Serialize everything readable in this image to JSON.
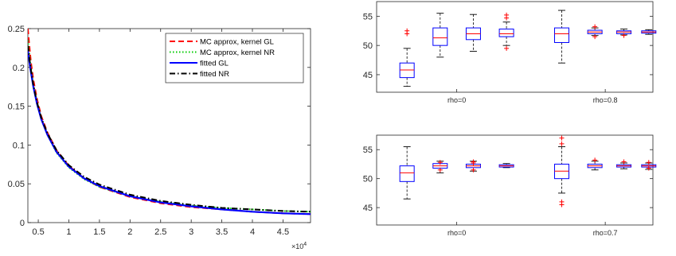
{
  "chart_data": [
    {
      "type": "line",
      "xlabel": "",
      "ylabel": "",
      "x_multiplier_label": "×10",
      "x_multiplier_exp": "4",
      "xlim": [
        0.33,
        4.95
      ],
      "ylim": [
        0,
        0.25
      ],
      "xticks": [
        0.5,
        1,
        1.5,
        2,
        2.5,
        3,
        3.5,
        4,
        4.5
      ],
      "xtick_labels": [
        "0.5",
        "1",
        "1.5",
        "2",
        "2.5",
        "3",
        "3.5",
        "4",
        "4.5"
      ],
      "yticks": [
        0,
        0.05,
        0.1,
        0.15,
        0.2,
        0.25
      ],
      "ytick_labels": [
        "0",
        "0.05",
        "0.1",
        "0.15",
        "0.2",
        "0.25"
      ],
      "legend_position": "top-right",
      "series": [
        {
          "name": "MC approx, kernel GL",
          "color": "#ff0000",
          "style": "dashed",
          "x": [
            0.33,
            0.35,
            0.38,
            0.42,
            0.48,
            0.55,
            0.65,
            0.8,
            1.0,
            1.25,
            1.5,
            2.0,
            2.5,
            3.0,
            3.5,
            4.0,
            4.5,
            4.95
          ],
          "y": [
            0.25,
            0.232,
            0.207,
            0.184,
            0.159,
            0.137,
            0.116,
            0.093,
            0.073,
            0.057,
            0.046,
            0.033,
            0.025,
            0.02,
            0.017,
            0.014,
            0.012,
            0.011
          ]
        },
        {
          "name": "MC approx, kernel NR",
          "color": "#00cc00",
          "style": "dotted",
          "x": [
            0.33,
            0.35,
            0.38,
            0.42,
            0.48,
            0.55,
            0.65,
            0.8,
            1.0,
            1.25,
            1.5,
            2.0,
            2.5,
            3.0,
            3.5,
            4.0,
            4.5,
            4.95
          ],
          "y": [
            0.235,
            0.22,
            0.2,
            0.178,
            0.155,
            0.134,
            0.113,
            0.09,
            0.071,
            0.056,
            0.046,
            0.034,
            0.027,
            0.022,
            0.019,
            0.017,
            0.015,
            0.014
          ]
        },
        {
          "name": "fitted GL",
          "color": "#0000ff",
          "style": "solid",
          "x": [
            0.33,
            0.35,
            0.38,
            0.42,
            0.48,
            0.55,
            0.65,
            0.8,
            1.0,
            1.25,
            1.5,
            2.0,
            2.5,
            3.0,
            3.5,
            4.0,
            4.5,
            4.95
          ],
          "y": [
            0.222,
            0.21,
            0.194,
            0.175,
            0.153,
            0.133,
            0.113,
            0.091,
            0.072,
            0.057,
            0.047,
            0.034,
            0.026,
            0.021,
            0.017,
            0.014,
            0.012,
            0.011
          ]
        },
        {
          "name": "fitted NR",
          "color": "#000000",
          "style": "dashdot",
          "x": [
            0.33,
            0.35,
            0.38,
            0.42,
            0.48,
            0.55,
            0.65,
            0.8,
            1.0,
            1.25,
            1.5,
            2.0,
            2.5,
            3.0,
            3.5,
            4.0,
            4.5,
            4.95
          ],
          "y": [
            0.228,
            0.215,
            0.197,
            0.177,
            0.155,
            0.135,
            0.115,
            0.093,
            0.074,
            0.059,
            0.049,
            0.036,
            0.028,
            0.023,
            0.019,
            0.017,
            0.015,
            0.014
          ]
        }
      ]
    },
    {
      "type": "box",
      "ylim": [
        42,
        57.5
      ],
      "yticks": [
        45,
        50,
        55
      ],
      "ytick_labels": [
        "45",
        "50",
        "55"
      ],
      "group_labels": [
        "rho=0",
        "rho=0.8"
      ],
      "boxes": [
        {
          "group": 0,
          "q1": 44.5,
          "median": 45.8,
          "q3": 47.0,
          "whisker_low": 43.0,
          "whisker_high": 49.5,
          "outliers": [
            52.0,
            52.5
          ]
        },
        {
          "group": 0,
          "q1": 50.0,
          "median": 51.3,
          "q3": 53.0,
          "whisker_low": 48.0,
          "whisker_high": 55.5,
          "outliers": []
        },
        {
          "group": 0,
          "q1": 51.0,
          "median": 52.0,
          "q3": 53.0,
          "whisker_low": 49.0,
          "whisker_high": 55.3,
          "outliers": []
        },
        {
          "group": 0,
          "q1": 51.5,
          "median": 52.0,
          "q3": 52.8,
          "whisker_low": 50.0,
          "whisker_high": 54.0,
          "outliers": [
            49.5,
            54.7,
            55.2
          ]
        },
        {
          "group": 1,
          "q1": 50.5,
          "median": 52.0,
          "q3": 53.0,
          "whisker_low": 47.0,
          "whisker_high": 56.0,
          "outliers": []
        },
        {
          "group": 1,
          "q1": 52.0,
          "median": 52.3,
          "q3": 52.6,
          "whisker_low": 51.7,
          "whisker_high": 53.0,
          "outliers": [
            53.2,
            51.5
          ]
        },
        {
          "group": 1,
          "q1": 52.0,
          "median": 52.3,
          "q3": 52.5,
          "whisker_low": 51.8,
          "whisker_high": 52.8,
          "outliers": [
            51.7
          ]
        },
        {
          "group": 1,
          "q1": 52.1,
          "median": 52.3,
          "q3": 52.5,
          "whisker_low": 51.9,
          "whisker_high": 52.7,
          "outliers": []
        }
      ]
    },
    {
      "type": "box",
      "ylim": [
        42,
        57.5
      ],
      "yticks": [
        45,
        50,
        55
      ],
      "ytick_labels": [
        "45",
        "50",
        "55"
      ],
      "group_labels": [
        "rho=0",
        "rho=0.7"
      ],
      "boxes": [
        {
          "group": 0,
          "q1": 49.5,
          "median": 51.0,
          "q3": 52.2,
          "whisker_low": 46.5,
          "whisker_high": 55.5,
          "outliers": []
        },
        {
          "group": 0,
          "q1": 51.8,
          "median": 52.2,
          "q3": 52.6,
          "whisker_low": 51.0,
          "whisker_high": 53.0,
          "outliers": [
            51.5,
            52.8
          ]
        },
        {
          "group": 0,
          "q1": 51.9,
          "median": 52.2,
          "q3": 52.5,
          "whisker_low": 51.3,
          "whisker_high": 53.0,
          "outliers": [
            51.5,
            52.7,
            52.9
          ]
        },
        {
          "group": 0,
          "q1": 52.0,
          "median": 52.2,
          "q3": 52.4,
          "whisker_low": 51.9,
          "whisker_high": 52.6,
          "outliers": []
        },
        {
          "group": 1,
          "q1": 50.0,
          "median": 51.3,
          "q3": 52.5,
          "whisker_low": 47.5,
          "whisker_high": 55.5,
          "outliers": [
            45.5,
            46.0,
            56.0,
            57.0
          ]
        },
        {
          "group": 1,
          "q1": 51.9,
          "median": 52.2,
          "q3": 52.5,
          "whisker_low": 51.5,
          "whisker_high": 53.0,
          "outliers": [
            53.2
          ]
        },
        {
          "group": 1,
          "q1": 52.0,
          "median": 52.2,
          "q3": 52.4,
          "whisker_low": 51.7,
          "whisker_high": 52.7,
          "outliers": [
            52.9
          ]
        },
        {
          "group": 1,
          "q1": 52.0,
          "median": 52.2,
          "q3": 52.4,
          "whisker_low": 51.6,
          "whisker_high": 52.7,
          "outliers": [
            51.8,
            52.8
          ]
        }
      ]
    }
  ]
}
